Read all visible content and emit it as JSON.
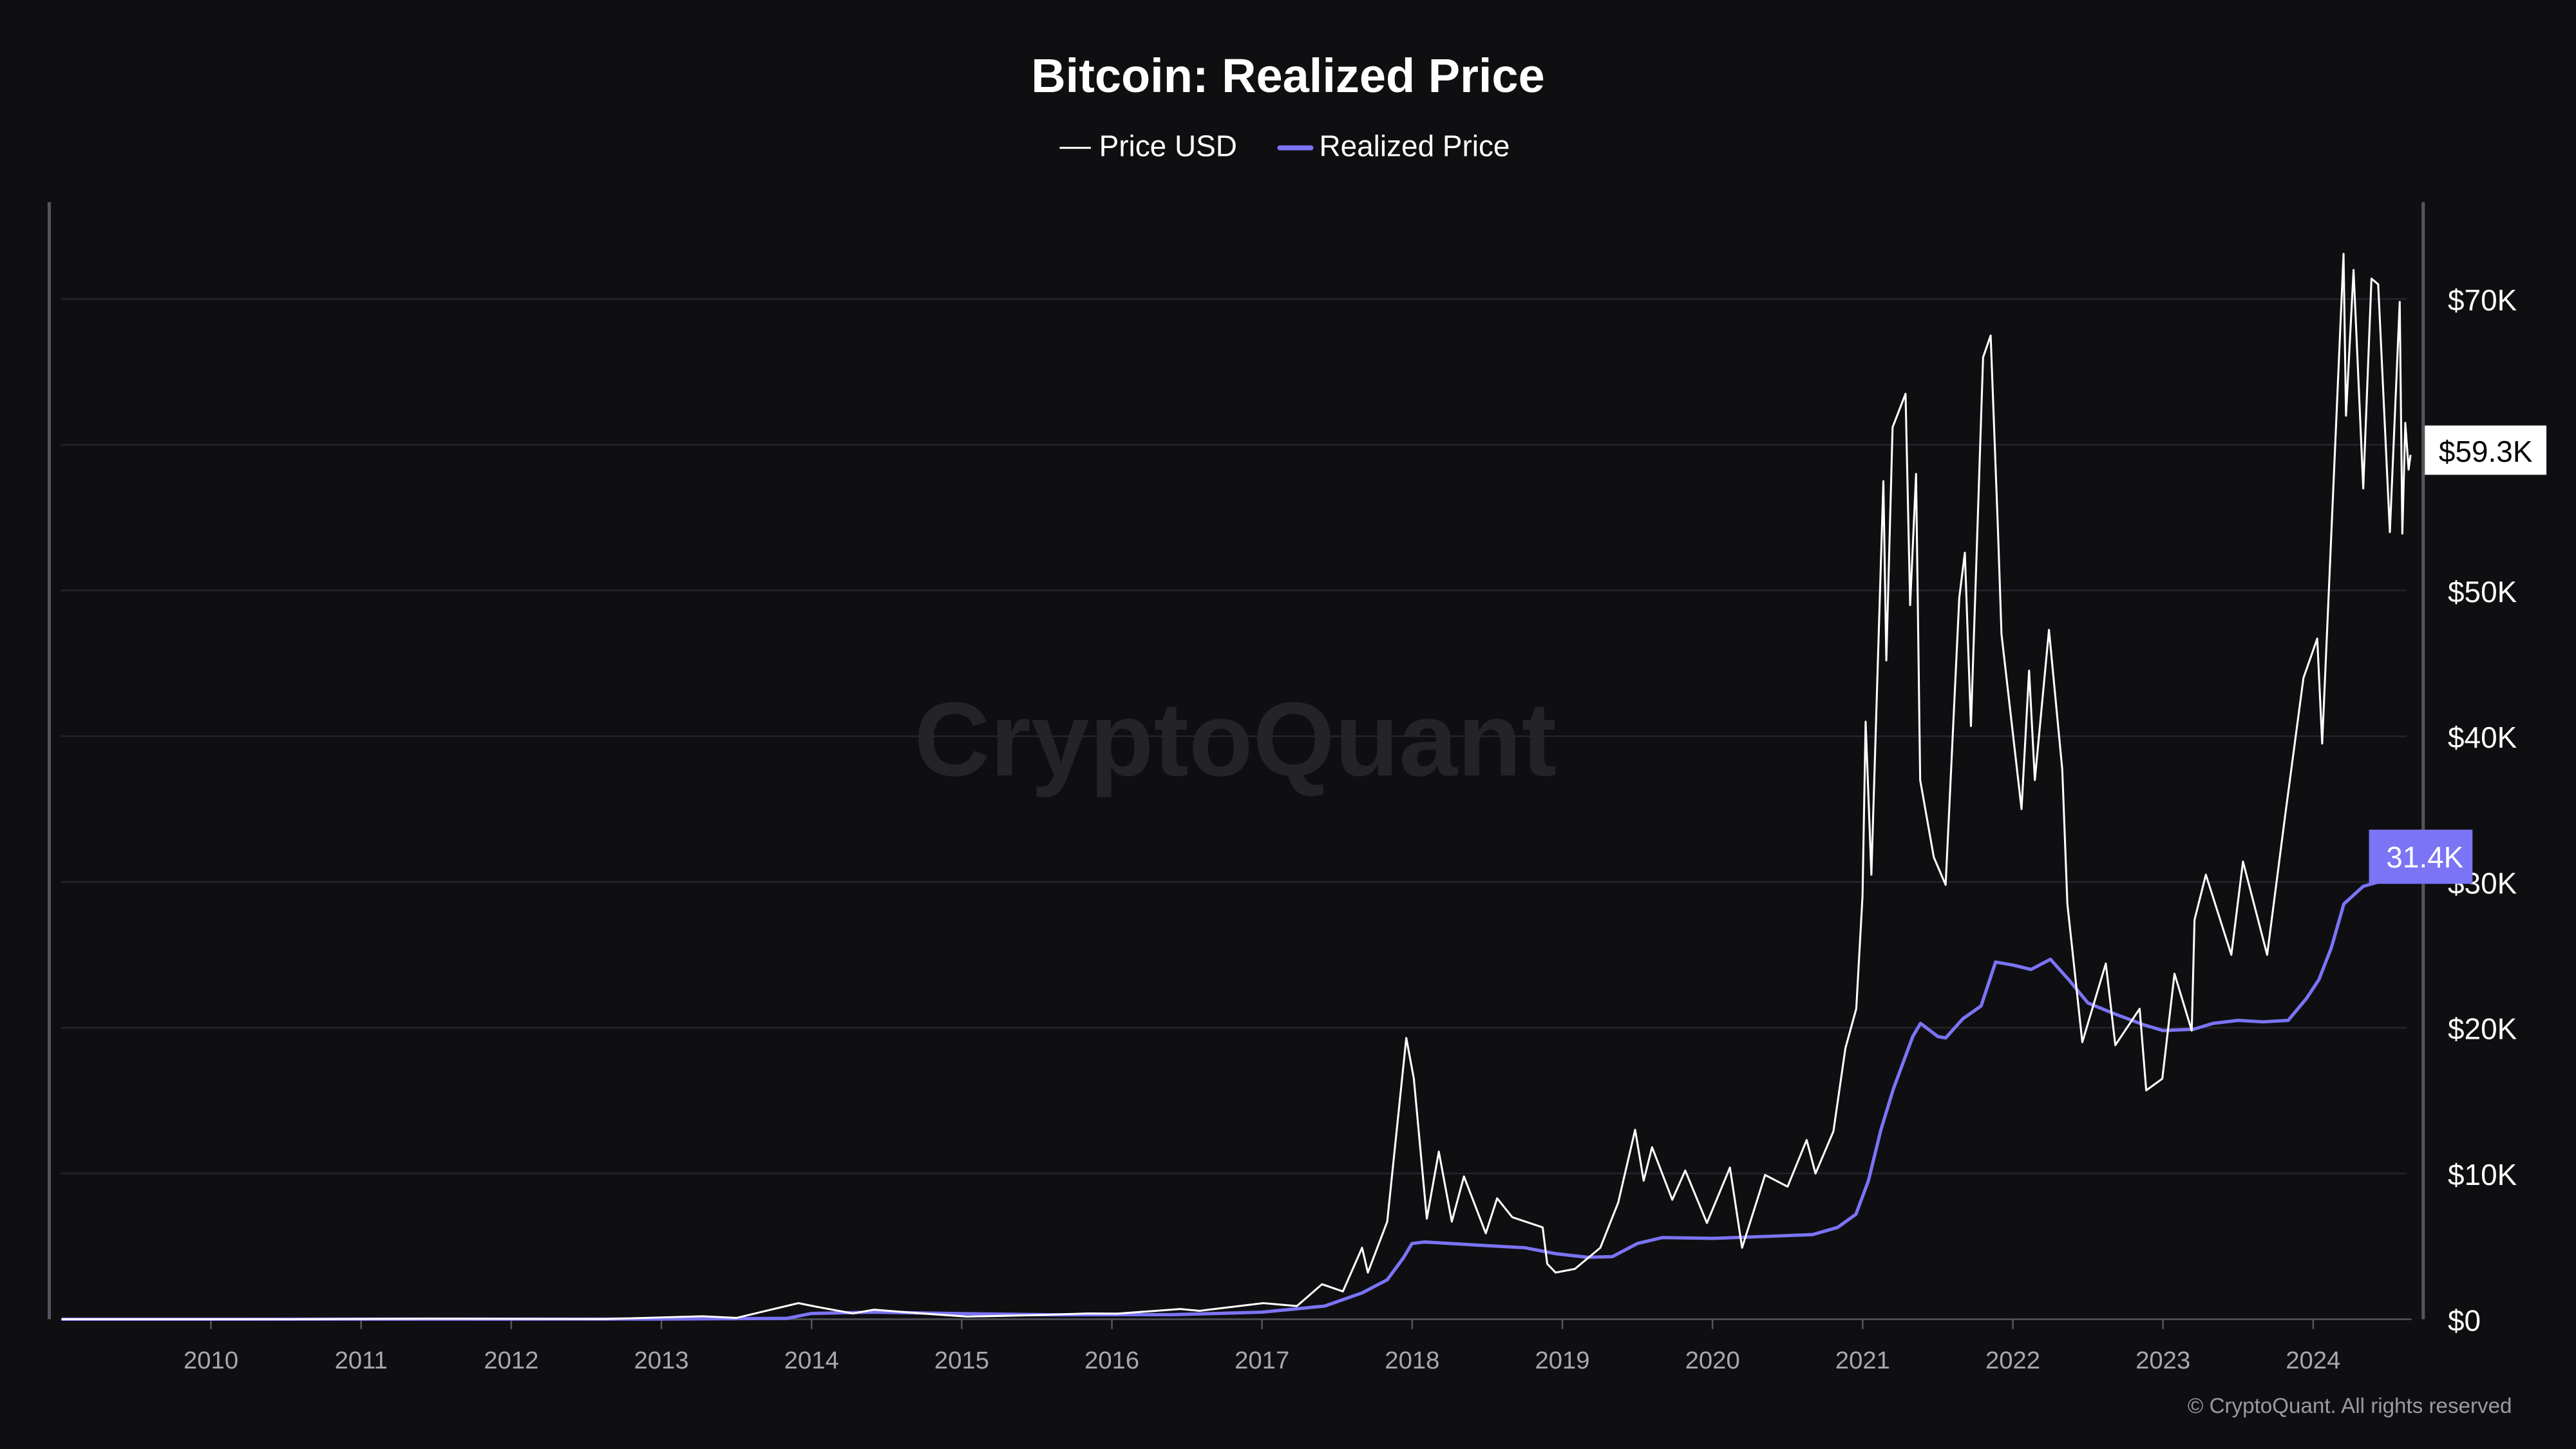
{
  "colors": {
    "background": "#0f0f12",
    "price": "#ffffff",
    "realized": "#7b74f5",
    "grid": "#24242a",
    "axis": "#55555c"
  },
  "watermark": "CryptoQuant",
  "footer": "© CryptoQuant. All rights reserved",
  "chart_data": {
    "type": "line",
    "title": "Bitcoin: Realized Price",
    "legend_placement": "top-center",
    "grid": true,
    "xlim": [
      "2009-01-01",
      "2024-08-25"
    ],
    "ylim": [
      0,
      76000
    ],
    "x_ticks": [
      "2010",
      "2011",
      "2012",
      "2013",
      "2014",
      "2015",
      "2016",
      "2017",
      "2018",
      "2019",
      "2020",
      "2021",
      "2022",
      "2023",
      "2024"
    ],
    "y_ticks": [
      {
        "value": 0,
        "label": "$0"
      },
      {
        "value": 10000,
        "label": "$10K"
      },
      {
        "value": 20000,
        "label": "$20K"
      },
      {
        "value": 30000,
        "label": "$30K"
      },
      {
        "value": 40000,
        "label": "$40K"
      },
      {
        "value": 50000,
        "label": "$50K"
      },
      {
        "value": 70000,
        "label": "$70K"
      }
    ],
    "last_value_labels": [
      {
        "series": "Price USD",
        "label": "$59.3K",
        "value": 59300
      },
      {
        "series": "Realized Price",
        "label": "31.4K",
        "value": 31400
      }
    ],
    "series": [
      {
        "name": "Price USD",
        "color": "#ffffff",
        "points": [
          [
            "2009-01-03",
            0
          ],
          [
            "2010-07-15",
            0.07
          ],
          [
            "2011-06-08",
            30
          ],
          [
            "2012-08-15",
            12
          ],
          [
            "2013-04-09",
            200
          ],
          [
            "2013-07-01",
            90
          ],
          [
            "2013-11-30",
            1100
          ],
          [
            "2014-01-15",
            850
          ],
          [
            "2014-04-10",
            400
          ],
          [
            "2014-06-01",
            650
          ],
          [
            "2014-10-01",
            380
          ],
          [
            "2015-01-14",
            180
          ],
          [
            "2015-07-01",
            280
          ],
          [
            "2015-11-04",
            400
          ],
          [
            "2016-01-15",
            380
          ],
          [
            "2016-06-15",
            700
          ],
          [
            "2016-08-01",
            580
          ],
          [
            "2017-01-04",
            1100
          ],
          [
            "2017-03-25",
            900
          ],
          [
            "2017-05-25",
            2400
          ],
          [
            "2017-07-15",
            1900
          ],
          [
            "2017-09-01",
            4900
          ],
          [
            "2017-09-15",
            3200
          ],
          [
            "2017-11-01",
            6700
          ],
          [
            "2017-12-17",
            19300
          ],
          [
            "2018-01-05",
            16500
          ],
          [
            "2018-02-06",
            6900
          ],
          [
            "2018-03-05",
            11500
          ],
          [
            "2018-04-06",
            6700
          ],
          [
            "2018-05-05",
            9800
          ],
          [
            "2018-06-28",
            5900
          ],
          [
            "2018-07-25",
            8300
          ],
          [
            "2018-09-01",
            7000
          ],
          [
            "2018-11-14",
            6300
          ],
          [
            "2018-11-25",
            3800
          ],
          [
            "2018-12-15",
            3200
          ],
          [
            "2019-02-01",
            3450
          ],
          [
            "2019-04-02",
            4900
          ],
          [
            "2019-05-15",
            8000
          ],
          [
            "2019-06-26",
            13000
          ],
          [
            "2019-07-16",
            9500
          ],
          [
            "2019-08-06",
            11800
          ],
          [
            "2019-09-25",
            8200
          ],
          [
            "2019-10-26",
            10200
          ],
          [
            "2019-12-18",
            6600
          ],
          [
            "2020-02-13",
            10400
          ],
          [
            "2020-03-12",
            4900
          ],
          [
            "2020-05-07",
            9900
          ],
          [
            "2020-07-01",
            9100
          ],
          [
            "2020-08-17",
            12300
          ],
          [
            "2020-09-08",
            10000
          ],
          [
            "2020-10-21",
            12900
          ],
          [
            "2020-11-20",
            18600
          ],
          [
            "2020-12-16",
            21300
          ],
          [
            "2020-12-31",
            29000
          ],
          [
            "2021-01-08",
            41000
          ],
          [
            "2021-01-22",
            30500
          ],
          [
            "2021-02-21",
            57500
          ],
          [
            "2021-02-28",
            45200
          ],
          [
            "2021-03-13",
            61200
          ],
          [
            "2021-04-14",
            63500
          ],
          [
            "2021-04-25",
            49000
          ],
          [
            "2021-05-09",
            58000
          ],
          [
            "2021-05-19",
            37000
          ],
          [
            "2021-06-22",
            31700
          ],
          [
            "2021-07-20",
            29800
          ],
          [
            "2021-08-23",
            49500
          ],
          [
            "2021-09-06",
            52600
          ],
          [
            "2021-09-21",
            40700
          ],
          [
            "2021-10-20",
            66000
          ],
          [
            "2021-11-08",
            67500
          ],
          [
            "2021-11-26",
            54000
          ],
          [
            "2021-12-04",
            47000
          ],
          [
            "2022-01-22",
            35000
          ],
          [
            "2022-02-10",
            44500
          ],
          [
            "2022-02-24",
            37000
          ],
          [
            "2022-03-28",
            47300
          ],
          [
            "2022-04-30",
            37700
          ],
          [
            "2022-05-12",
            28500
          ],
          [
            "2022-06-18",
            19000
          ],
          [
            "2022-08-14",
            24400
          ],
          [
            "2022-09-07",
            18800
          ],
          [
            "2022-11-05",
            21300
          ],
          [
            "2022-11-21",
            15700
          ],
          [
            "2022-12-30",
            16500
          ],
          [
            "2023-01-29",
            23700
          ],
          [
            "2023-03-10",
            19800
          ],
          [
            "2023-03-17",
            27400
          ],
          [
            "2023-04-14",
            30500
          ],
          [
            "2023-06-15",
            25000
          ],
          [
            "2023-07-13",
            31400
          ],
          [
            "2023-09-11",
            25000
          ],
          [
            "2023-10-24",
            34500
          ],
          [
            "2023-12-08",
            44000
          ],
          [
            "2024-01-11",
            46700
          ],
          [
            "2024-01-23",
            39500
          ],
          [
            "2024-02-28",
            62500
          ],
          [
            "2024-03-14",
            73100
          ],
          [
            "2024-03-20",
            62000
          ],
          [
            "2024-04-08",
            72000
          ],
          [
            "2024-05-01",
            57000
          ],
          [
            "2024-05-21",
            71400
          ],
          [
            "2024-06-07",
            71000
          ],
          [
            "2024-07-05",
            54000
          ],
          [
            "2024-07-29",
            69800
          ],
          [
            "2024-08-05",
            53900
          ],
          [
            "2024-08-12",
            61500
          ],
          [
            "2024-08-20",
            58300
          ],
          [
            "2024-08-25",
            59300
          ]
        ]
      },
      {
        "name": "Realized Price",
        "color": "#7b74f5",
        "points": [
          [
            "2009-01-03",
            0
          ],
          [
            "2013-01-01",
            10
          ],
          [
            "2013-11-01",
            60
          ],
          [
            "2013-12-31",
            400
          ],
          [
            "2014-06-01",
            480
          ],
          [
            "2015-01-01",
            380
          ],
          [
            "2015-08-01",
            300
          ],
          [
            "2016-06-01",
            320
          ],
          [
            "2017-01-01",
            480
          ],
          [
            "2017-06-01",
            900
          ],
          [
            "2017-09-01",
            1800
          ],
          [
            "2017-11-01",
            2700
          ],
          [
            "2017-12-10",
            4200
          ],
          [
            "2017-12-31",
            5200
          ],
          [
            "2018-02-01",
            5300
          ],
          [
            "2018-06-01",
            5100
          ],
          [
            "2018-10-01",
            4900
          ],
          [
            "2018-12-15",
            4500
          ],
          [
            "2019-03-01",
            4250
          ],
          [
            "2019-05-01",
            4300
          ],
          [
            "2019-07-01",
            5200
          ],
          [
            "2019-09-01",
            5600
          ],
          [
            "2020-01-01",
            5550
          ],
          [
            "2020-06-01",
            5700
          ],
          [
            "2020-09-01",
            5800
          ],
          [
            "2020-11-01",
            6300
          ],
          [
            "2020-12-15",
            7200
          ],
          [
            "2021-01-15",
            9500
          ],
          [
            "2021-02-15",
            13000
          ],
          [
            "2021-03-15",
            15800
          ],
          [
            "2021-05-01",
            19400
          ],
          [
            "2021-05-20",
            20300
          ],
          [
            "2021-07-01",
            19400
          ],
          [
            "2021-07-20",
            19300
          ],
          [
            "2021-09-01",
            20600
          ],
          [
            "2021-10-15",
            21500
          ],
          [
            "2021-11-20",
            24500
          ],
          [
            "2022-01-01",
            24300
          ],
          [
            "2022-02-15",
            24000
          ],
          [
            "2022-04-01",
            24700
          ],
          [
            "2022-05-15",
            23300
          ],
          [
            "2022-07-01",
            21700
          ],
          [
            "2022-09-01",
            21000
          ],
          [
            "2022-11-15",
            20200
          ],
          [
            "2023-01-01",
            19800
          ],
          [
            "2023-03-15",
            19900
          ],
          [
            "2023-05-01",
            20300
          ],
          [
            "2023-07-01",
            20500
          ],
          [
            "2023-09-01",
            20400
          ],
          [
            "2023-11-01",
            20500
          ],
          [
            "2023-12-15",
            22000
          ],
          [
            "2024-01-15",
            23300
          ],
          [
            "2024-02-15",
            25500
          ],
          [
            "2024-03-15",
            28500
          ],
          [
            "2024-05-01",
            29700
          ],
          [
            "2024-07-01",
            30200
          ],
          [
            "2024-08-25",
            31400
          ]
        ]
      }
    ]
  }
}
